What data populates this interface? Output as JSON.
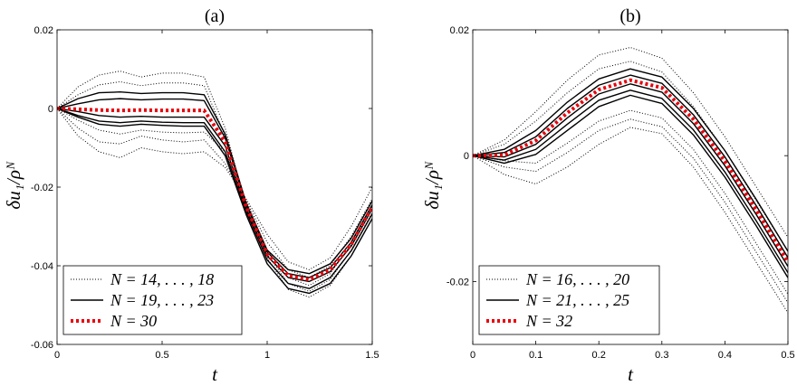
{
  "chart_data": [
    {
      "type": "line",
      "title": "(a)",
      "xlabel": "t",
      "ylabel": "δu₁/ρᴺ",
      "xlim": [
        0,
        1.5
      ],
      "ylim": [
        -0.06,
        0.02
      ],
      "xticks": [
        0,
        0.5,
        1,
        1.5
      ],
      "xtick_labels": [
        "0",
        "0.5",
        "1",
        "1.5"
      ],
      "yticks": [
        -0.06,
        -0.04,
        -0.02,
        0,
        0.02
      ],
      "ytick_labels": [
        "-0.06",
        "-0.04",
        "-0.02",
        "0",
        "0.02"
      ],
      "legend_position": "bottom-left",
      "legend": [
        {
          "label": "N = 14, . . . , 18",
          "style": "dotted",
          "color": "#000000"
        },
        {
          "label": "N = 19, . . . , 23",
          "style": "solid",
          "color": "#000000"
        },
        {
          "label": "N = 30",
          "style": "thick-dotted",
          "color": "#e8000b"
        }
      ],
      "x": [
        0,
        0.1,
        0.2,
        0.3,
        0.4,
        0.5,
        0.6,
        0.7,
        0.8,
        0.9,
        1.0,
        1.1,
        1.2,
        1.3,
        1.4,
        1.5
      ],
      "series": [
        {
          "name": "N=14",
          "group": "dotted",
          "values": [
            0,
            0.0055,
            0.0085,
            0.0095,
            0.008,
            0.009,
            0.009,
            0.008,
            -0.005,
            -0.025,
            -0.038,
            -0.046,
            -0.048,
            -0.045,
            -0.0375,
            -0.028
          ]
        },
        {
          "name": "N=15",
          "group": "dotted",
          "values": [
            0,
            0.0035,
            0.006,
            0.0068,
            0.0058,
            0.0065,
            0.0065,
            0.0058,
            -0.007,
            -0.0245,
            -0.037,
            -0.0445,
            -0.0465,
            -0.0435,
            -0.036,
            -0.0265
          ]
        },
        {
          "name": "N=16",
          "group": "dotted",
          "values": [
            0,
            -0.003,
            -0.0055,
            -0.0065,
            -0.0055,
            -0.006,
            -0.0062,
            -0.006,
            -0.011,
            -0.024,
            -0.036,
            -0.043,
            -0.045,
            -0.042,
            -0.0345,
            -0.025
          ]
        },
        {
          "name": "N=17",
          "group": "dotted",
          "values": [
            0,
            -0.005,
            -0.0085,
            -0.009,
            -0.007,
            -0.008,
            -0.0085,
            -0.008,
            -0.014,
            -0.0235,
            -0.034,
            -0.041,
            -0.043,
            -0.04,
            -0.0325,
            -0.023
          ]
        },
        {
          "name": "N=18",
          "group": "dotted",
          "values": [
            0,
            -0.007,
            -0.011,
            -0.0125,
            -0.01,
            -0.011,
            -0.0115,
            -0.011,
            -0.015,
            -0.023,
            -0.032,
            -0.039,
            -0.041,
            -0.038,
            -0.03,
            -0.02
          ]
        },
        {
          "name": "N=19",
          "group": "solid",
          "values": [
            0,
            0.0025,
            0.004,
            0.0042,
            0.0038,
            0.004,
            0.004,
            0.0035,
            -0.0065,
            -0.024,
            -0.036,
            -0.041,
            -0.042,
            -0.0395,
            -0.033,
            -0.0235
          ]
        },
        {
          "name": "N=20",
          "group": "solid",
          "values": [
            0,
            0.0012,
            0.0022,
            0.0025,
            0.0022,
            0.0024,
            0.0024,
            0.002,
            -0.0075,
            -0.0245,
            -0.0365,
            -0.042,
            -0.043,
            -0.0405,
            -0.034,
            -0.0245
          ]
        },
        {
          "name": "N=21",
          "group": "solid",
          "values": [
            0,
            -0.0008,
            -0.0018,
            -0.0022,
            -0.002,
            -0.0022,
            -0.0022,
            -0.0022,
            -0.0095,
            -0.0255,
            -0.0375,
            -0.043,
            -0.044,
            -0.0415,
            -0.035,
            -0.0255
          ]
        },
        {
          "name": "N=22",
          "group": "solid",
          "values": [
            0,
            -0.0018,
            -0.0032,
            -0.0036,
            -0.0032,
            -0.0035,
            -0.0036,
            -0.0036,
            -0.011,
            -0.0262,
            -0.0385,
            -0.0445,
            -0.0458,
            -0.043,
            -0.0362,
            -0.0268
          ]
        },
        {
          "name": "N=23",
          "group": "solid",
          "values": [
            0,
            -0.0022,
            -0.004,
            -0.0045,
            -0.004,
            -0.0043,
            -0.0045,
            -0.0045,
            -0.012,
            -0.027,
            -0.0395,
            -0.0458,
            -0.047,
            -0.0445,
            -0.0375,
            -0.028
          ]
        },
        {
          "name": "N=30",
          "group": "red",
          "values": [
            0,
            -0.0002,
            -0.0004,
            -0.0005,
            -0.0004,
            -0.0005,
            -0.0005,
            -0.0005,
            -0.0085,
            -0.025,
            -0.037,
            -0.0425,
            -0.0435,
            -0.041,
            -0.0345,
            -0.025
          ]
        }
      ]
    },
    {
      "type": "line",
      "title": "(b)",
      "xlabel": "t",
      "ylabel": "δu₁/ρᴺ",
      "xlim": [
        0,
        0.5
      ],
      "ylim": [
        -0.03,
        0.02
      ],
      "xticks": [
        0,
        0.1,
        0.2,
        0.3,
        0.4,
        0.5
      ],
      "xtick_labels": [
        "0",
        "0.1",
        "0.2",
        "0.3",
        "0.4",
        "0.5"
      ],
      "yticks": [
        -0.02,
        0,
        0.02
      ],
      "ytick_labels": [
        "-0.02",
        "0",
        "0.02"
      ],
      "legend_position": "bottom-left",
      "legend": [
        {
          "label": "N = 16, . . . , 20",
          "style": "dotted",
          "color": "#000000"
        },
        {
          "label": "N = 21, . . . , 25",
          "style": "solid",
          "color": "#000000"
        },
        {
          "label": "N = 32",
          "style": "thick-dotted",
          "color": "#e8000b"
        }
      ],
      "x": [
        0,
        0.05,
        0.1,
        0.15,
        0.2,
        0.25,
        0.3,
        0.35,
        0.4,
        0.45,
        0.5
      ],
      "series": [
        {
          "name": "N=16",
          "group": "dotted",
          "values": [
            0,
            0.0025,
            0.007,
            0.012,
            0.016,
            0.0172,
            0.0155,
            0.01,
            0.003,
            -0.005,
            -0.013
          ]
        },
        {
          "name": "N=17",
          "group": "dotted",
          "values": [
            0,
            0.0018,
            0.0055,
            0.01,
            0.0138,
            0.015,
            0.0133,
            0.0078,
            0.0008,
            -0.0072,
            -0.0152
          ]
        },
        {
          "name": "N=18",
          "group": "dotted",
          "values": [
            0,
            -0.0008,
            -0.0012,
            0.002,
            0.0055,
            0.0072,
            0.006,
            0.001,
            -0.006,
            -0.014,
            -0.022
          ]
        },
        {
          "name": "N=19",
          "group": "dotted",
          "values": [
            0,
            -0.0018,
            -0.0025,
            0.0005,
            0.004,
            0.0058,
            0.0046,
            -0.0004,
            -0.0074,
            -0.0154,
            -0.0234
          ]
        },
        {
          "name": "N=20",
          "group": "dotted",
          "values": [
            0,
            -0.003,
            -0.0045,
            -0.0018,
            0.0018,
            0.0045,
            0.0035,
            -0.0018,
            -0.009,
            -0.017,
            -0.025
          ]
        },
        {
          "name": "N=21",
          "group": "solid",
          "values": [
            0,
            0.001,
            0.004,
            0.0085,
            0.0122,
            0.0138,
            0.0125,
            0.0075,
            0.0008,
            -0.007,
            -0.0152
          ]
        },
        {
          "name": "N=22",
          "group": "solid",
          "values": [
            0,
            0.0005,
            0.003,
            0.0075,
            0.0112,
            0.0128,
            0.0115,
            0.0065,
            -0.0002,
            -0.008,
            -0.0162
          ]
        },
        {
          "name": "N=23",
          "group": "solid",
          "values": [
            0,
            -0.0002,
            0.0018,
            0.006,
            0.0098,
            0.0114,
            0.0101,
            0.0051,
            -0.0016,
            -0.0094,
            -0.0176
          ]
        },
        {
          "name": "N=24",
          "group": "solid",
          "values": [
            0,
            -0.0007,
            0.001,
            0.005,
            0.0088,
            0.0104,
            0.0091,
            0.0041,
            -0.0026,
            -0.0104,
            -0.0186
          ]
        },
        {
          "name": "N=25",
          "group": "solid",
          "values": [
            0,
            -0.0012,
            0.0002,
            0.004,
            0.0078,
            0.0096,
            0.0083,
            0.0033,
            -0.0034,
            -0.0112,
            -0.0194
          ]
        },
        {
          "name": "N=32",
          "group": "red",
          "values": [
            0,
            0.0001,
            0.0024,
            0.0068,
            0.0105,
            0.012,
            0.0108,
            0.0058,
            -0.0009,
            -0.0087,
            -0.0169
          ]
        }
      ]
    }
  ]
}
